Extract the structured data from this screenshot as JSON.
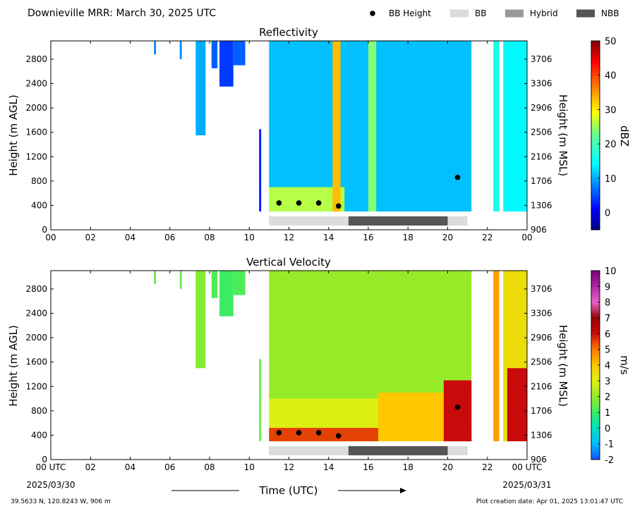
{
  "header": {
    "title": "Downieville MRR:  March 30, 2025 UTC",
    "legend": [
      {
        "label": "BB Height",
        "symbol": "dot",
        "color": "#000000"
      },
      {
        "label": "BB",
        "symbol": "bar",
        "color": "#dcdcdc"
      },
      {
        "label": "Hybrid",
        "symbol": "bar",
        "color": "#999999"
      },
      {
        "label": "NBB",
        "symbol": "bar",
        "color": "#555555"
      }
    ]
  },
  "chart_data": [
    {
      "type": "heatmap",
      "title": "Reflectivity",
      "ylabel": "Height (m AGL)",
      "y2label": "Height (m MSL)",
      "xlim": [
        0,
        24
      ],
      "ylim": [
        0,
        3100
      ],
      "xticks": [
        "00",
        "02",
        "04",
        "06",
        "08",
        "10",
        "12",
        "14",
        "16",
        "18",
        "20",
        "22",
        "00"
      ],
      "yticks": [
        "0",
        "400",
        "800",
        "1200",
        "1600",
        "2000",
        "2400",
        "2800"
      ],
      "y2ticks": [
        "906",
        "1306",
        "1706",
        "2106",
        "2506",
        "2906",
        "3306",
        "3706"
      ],
      "colorbar": {
        "label": "dBZ",
        "min": -5,
        "max": 50,
        "ticks": [
          "0",
          "10",
          "20",
          "30",
          "40",
          "50"
        ],
        "colormap": "jet"
      },
      "bright_band_height": [
        [
          11.5,
          440
        ],
        [
          12.5,
          440
        ],
        [
          13.5,
          440
        ],
        [
          14.5,
          390
        ],
        [
          20.5,
          860
        ]
      ],
      "bright_band_type": [
        {
          "type": "BB",
          "start": 11.0,
          "end": 15.0
        },
        {
          "type": "NBB",
          "start": 15.0,
          "end": 20.0
        },
        {
          "type": "BB",
          "start": 20.0,
          "end": 21.0
        }
      ],
      "echo_regions": [
        {
          "start": 5.2,
          "end": 5.3,
          "base": 2880,
          "top": 3100,
          "value": 8
        },
        {
          "start": 6.5,
          "end": 6.6,
          "base": 2800,
          "top": 3100,
          "value": 8
        },
        {
          "start": 7.3,
          "end": 7.8,
          "base": 1550,
          "top": 3100,
          "value": 10
        },
        {
          "start": 8.1,
          "end": 8.4,
          "base": 2650,
          "top": 3100,
          "value": 6
        },
        {
          "start": 8.5,
          "end": 9.2,
          "base": 2350,
          "top": 3100,
          "value": 4
        },
        {
          "start": 9.2,
          "end": 9.8,
          "base": 2700,
          "top": 3100,
          "value": 6
        },
        {
          "start": 10.5,
          "end": 10.6,
          "base": 300,
          "top": 1650,
          "value": 2
        },
        {
          "start": 11.0,
          "end": 21.2,
          "base": 300,
          "top": 3100,
          "value": 11
        },
        {
          "start": 11.0,
          "end": 14.8,
          "base": 300,
          "top": 700,
          "value": 26
        },
        {
          "start": 14.2,
          "end": 14.6,
          "base": 300,
          "top": 3100,
          "value": 33
        },
        {
          "start": 16.0,
          "end": 16.4,
          "base": 300,
          "top": 3100,
          "value": 24
        },
        {
          "start": 22.3,
          "end": 22.6,
          "base": 300,
          "top": 3100,
          "value": 16
        },
        {
          "start": 22.8,
          "end": 24.0,
          "base": 300,
          "top": 3100,
          "value": 14
        }
      ]
    },
    {
      "type": "heatmap",
      "title": "Vertical Velocity",
      "ylabel": "Height (m AGL)",
      "y2label": "Height (m MSL)",
      "xlabel": "Time (UTC)",
      "xlim": [
        0,
        24
      ],
      "ylim": [
        0,
        3100
      ],
      "xticks": [
        "00 UTC",
        "02",
        "04",
        "06",
        "08",
        "10",
        "12",
        "14",
        "16",
        "18",
        "20",
        "22",
        "00 UTC"
      ],
      "xticks_sub": {
        "first": "2025/03/30",
        "last": "2025/03/31"
      },
      "yticks": [
        "0",
        "400",
        "800",
        "1200",
        "1600",
        "2000",
        "2400",
        "2800"
      ],
      "y2ticks": [
        "906",
        "1306",
        "1706",
        "2106",
        "2506",
        "2906",
        "3306",
        "3706"
      ],
      "colorbar": {
        "label": "m/s",
        "min": -2,
        "max": 10,
        "ticks": [
          "-2",
          "-1",
          "0",
          "1",
          "2",
          "3",
          "4",
          "5",
          "6",
          "7",
          "8",
          "9",
          "10"
        ]
      },
      "bright_band_height": [
        [
          11.5,
          440
        ],
        [
          12.5,
          440
        ],
        [
          13.5,
          440
        ],
        [
          14.5,
          390
        ],
        [
          20.5,
          860
        ]
      ],
      "bright_band_type": [
        {
          "type": "BB",
          "start": 11.0,
          "end": 15.0
        },
        {
          "type": "NBB",
          "start": 15.0,
          "end": 20.0
        },
        {
          "type": "BB",
          "start": 20.0,
          "end": 21.0
        }
      ],
      "echo_regions": [
        {
          "start": 5.2,
          "end": 5.3,
          "base": 2880,
          "top": 3100,
          "value": 1.5
        },
        {
          "start": 6.5,
          "end": 6.6,
          "base": 2800,
          "top": 3100,
          "value": 1.5
        },
        {
          "start": 7.3,
          "end": 7.8,
          "base": 1500,
          "top": 3100,
          "value": 1.8
        },
        {
          "start": 8.1,
          "end": 8.4,
          "base": 2650,
          "top": 3100,
          "value": 1.2
        },
        {
          "start": 8.5,
          "end": 9.2,
          "base": 2350,
          "top": 3100,
          "value": 1.0
        },
        {
          "start": 9.2,
          "end": 9.8,
          "base": 2700,
          "top": 3100,
          "value": 1.2
        },
        {
          "start": 10.5,
          "end": 10.6,
          "base": 300,
          "top": 1650,
          "value": 1.5
        },
        {
          "start": 11.0,
          "end": 21.2,
          "base": 300,
          "top": 3100,
          "value": 2.0
        },
        {
          "start": 11.0,
          "end": 16.5,
          "base": 300,
          "top": 1000,
          "value": 3.0
        },
        {
          "start": 11.0,
          "end": 21.2,
          "base": 300,
          "top": 520,
          "value": 5.5
        },
        {
          "start": 16.5,
          "end": 21.2,
          "base": 300,
          "top": 1100,
          "value": 4.0
        },
        {
          "start": 19.8,
          "end": 21.2,
          "base": 300,
          "top": 1300,
          "value": 6.0
        },
        {
          "start": 22.3,
          "end": 22.6,
          "base": 300,
          "top": 3100,
          "value": 4.5
        },
        {
          "start": 22.8,
          "end": 24.0,
          "base": 300,
          "top": 3100,
          "value": 3.5
        },
        {
          "start": 23.0,
          "end": 24.0,
          "base": 300,
          "top": 1500,
          "value": 6.0
        }
      ]
    }
  ],
  "footer": {
    "location": "39.5633 N, 120.8243 W, 906 m",
    "creation": "Plot creation date: Apr 01, 2025 13:01:47 UTC"
  }
}
